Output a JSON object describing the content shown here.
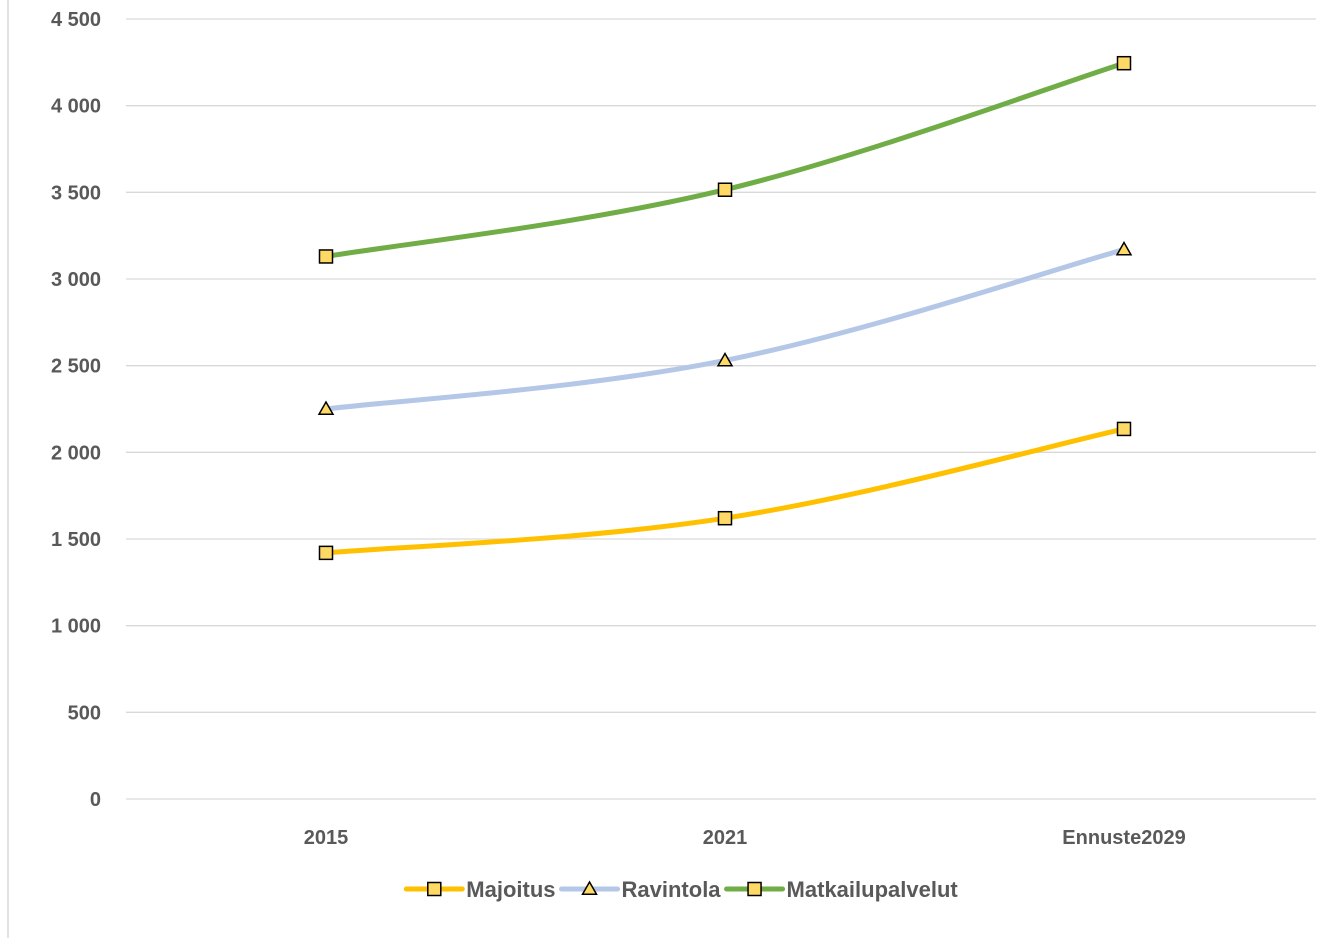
{
  "chart_data": {
    "type": "line",
    "categories": [
      "2015",
      "2021",
      "Ennuste2029"
    ],
    "series": [
      {
        "name": "Majoitus",
        "values": [
          1420,
          1620,
          2135
        ],
        "color": "#FFC000",
        "marker": "square",
        "marker_color": "#FFD966"
      },
      {
        "name": "Ravintola",
        "values": [
          2250,
          2530,
          3170
        ],
        "color": "#B4C7E7",
        "marker": "triangle",
        "marker_color": "#FFD966"
      },
      {
        "name": "Matkailupalvelut",
        "values": [
          3130,
          3515,
          4245
        ],
        "color": "#70AD47",
        "marker": "square",
        "marker_color": "#FFD966"
      }
    ],
    "y_ticks": [
      "0",
      "500",
      "1 000",
      "1 500",
      "2 000",
      "2 500",
      "3 000",
      "3 500",
      "4 000",
      "4 500"
    ],
    "ylim": [
      0,
      4500
    ],
    "grid": true,
    "legend_position": "bottom"
  }
}
